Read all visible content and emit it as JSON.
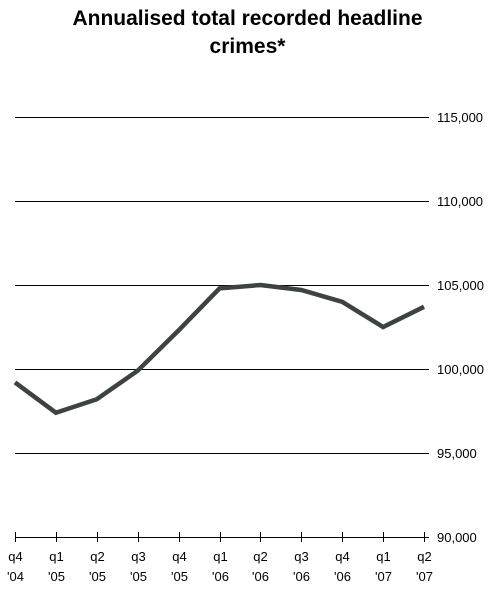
{
  "chart_data": {
    "type": "line",
    "title_lines": [
      "Annualised total recorded headline",
      "crimes*"
    ],
    "xlabel": "",
    "ylabel": "",
    "categories": [
      [
        "q4",
        "'04"
      ],
      [
        "q1",
        "'05"
      ],
      [
        "q2",
        "'05"
      ],
      [
        "q3",
        "'05"
      ],
      [
        "q4",
        "'05"
      ],
      [
        "q1",
        "'06"
      ],
      [
        "q2",
        "'06"
      ],
      [
        "q3",
        "'06"
      ],
      [
        "q4",
        "'06"
      ],
      [
        "q1",
        "'07"
      ],
      [
        "q2",
        "'07"
      ]
    ],
    "y_ticks": [
      "115,000",
      "110,000",
      "105,000",
      "100,000",
      "95,000",
      "90,000"
    ],
    "y_tick_values": [
      115000,
      110000,
      105000,
      100000,
      95000,
      90000
    ],
    "ylim": [
      90000,
      115000
    ],
    "grid": true,
    "series": [
      {
        "values": [
          99200,
          97400,
          98200,
          99900,
          102300,
          104800,
          105000,
          104700,
          104000,
          102500,
          103700
        ]
      }
    ],
    "colors": {
      "line": "#3c4342",
      "grid": "#000000",
      "text": "#000000"
    }
  }
}
